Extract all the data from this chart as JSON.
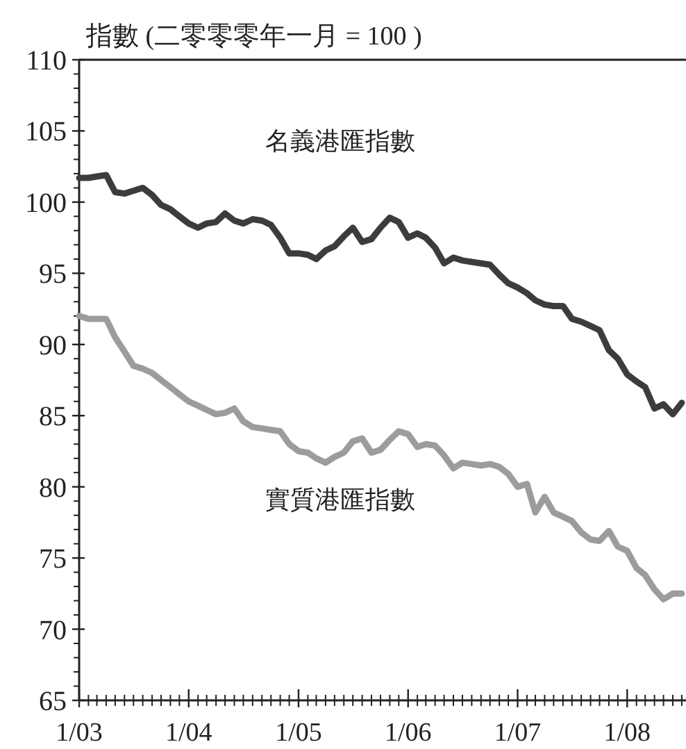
{
  "chart_data": {
    "type": "line",
    "ylabel": "指數 (二零零零年一月 = 100 )",
    "x": [
      "2003-01",
      "2003-02",
      "2003-03",
      "2003-04",
      "2003-05",
      "2003-06",
      "2003-07",
      "2003-08",
      "2003-09",
      "2003-10",
      "2003-11",
      "2003-12",
      "2004-01",
      "2004-02",
      "2004-03",
      "2004-04",
      "2004-05",
      "2004-06",
      "2004-07",
      "2004-08",
      "2004-09",
      "2004-10",
      "2004-11",
      "2004-12",
      "2005-01",
      "2005-02",
      "2005-03",
      "2005-04",
      "2005-05",
      "2005-06",
      "2005-07",
      "2005-08",
      "2005-09",
      "2005-10",
      "2005-11",
      "2005-12",
      "2006-01",
      "2006-02",
      "2006-03",
      "2006-04",
      "2006-05",
      "2006-06",
      "2006-07",
      "2006-08",
      "2006-09",
      "2006-10",
      "2006-11",
      "2006-12",
      "2007-01",
      "2007-02",
      "2007-03",
      "2007-04",
      "2007-05",
      "2007-06",
      "2007-07",
      "2007-08",
      "2007-09",
      "2007-10",
      "2007-11",
      "2007-12",
      "2008-01",
      "2008-02",
      "2008-03",
      "2008-04",
      "2008-05",
      "2008-06",
      "2008-07"
    ],
    "series": [
      {
        "name": "名義港匯指數",
        "color": "#3c3c3c",
        "values": [
          101.7,
          101.7,
          101.8,
          101.9,
          100.7,
          100.6,
          100.8,
          101.0,
          100.5,
          99.8,
          99.5,
          99.0,
          98.5,
          98.2,
          98.5,
          98.6,
          99.2,
          98.7,
          98.5,
          98.8,
          98.7,
          98.4,
          97.5,
          96.4,
          96.4,
          96.3,
          96.0,
          96.6,
          96.9,
          97.6,
          98.2,
          97.2,
          97.4,
          98.2,
          98.9,
          98.6,
          97.5,
          97.8,
          97.5,
          96.8,
          95.7,
          96.1,
          95.9,
          95.8,
          95.7,
          95.6,
          94.9,
          94.3,
          94.0,
          93.6,
          93.1,
          92.8,
          92.7,
          92.7,
          91.8,
          91.6,
          91.3,
          91.0,
          89.6,
          89.0,
          87.9,
          87.4,
          87.0,
          85.5,
          85.8,
          85.1,
          85.9
        ]
      },
      {
        "name": "實質港匯指數",
        "color": "#9c9c9c",
        "values": [
          92.0,
          91.8,
          91.8,
          91.8,
          90.5,
          89.5,
          88.5,
          88.3,
          88.0,
          87.5,
          87.0,
          86.5,
          86.0,
          85.7,
          85.4,
          85.1,
          85.2,
          85.5,
          84.6,
          84.2,
          84.1,
          84.0,
          83.9,
          83.0,
          82.5,
          82.4,
          82.0,
          81.7,
          82.1,
          82.4,
          83.2,
          83.4,
          82.4,
          82.6,
          83.3,
          83.9,
          83.7,
          82.8,
          83.0,
          82.9,
          82.2,
          81.3,
          81.7,
          81.6,
          81.5,
          81.6,
          81.4,
          80.9,
          80.0,
          80.2,
          78.2,
          79.3,
          78.2,
          77.9,
          77.6,
          76.8,
          76.3,
          76.2,
          76.9,
          75.8,
          75.5,
          74.3,
          73.8,
          72.8,
          72.1,
          72.5,
          72.5
        ]
      }
    ],
    "xlim": [
      "2003-01",
      "2008-07-15"
    ],
    "xticks": [
      {
        "value": "2003-01",
        "label": "1/03"
      },
      {
        "value": "2004-01",
        "label": "1/04"
      },
      {
        "value": "2005-01",
        "label": "1/05"
      },
      {
        "value": "2006-01",
        "label": "1/06"
      },
      {
        "value": "2007-01",
        "label": "1/07"
      },
      {
        "value": "2008-01",
        "label": "1/08"
      }
    ],
    "ylim": [
      65,
      110
    ],
    "yticks": [
      65,
      70,
      75,
      80,
      85,
      90,
      95,
      100,
      105,
      110
    ],
    "grid": false,
    "legend": false,
    "marker": "none",
    "line_style": "solid"
  }
}
